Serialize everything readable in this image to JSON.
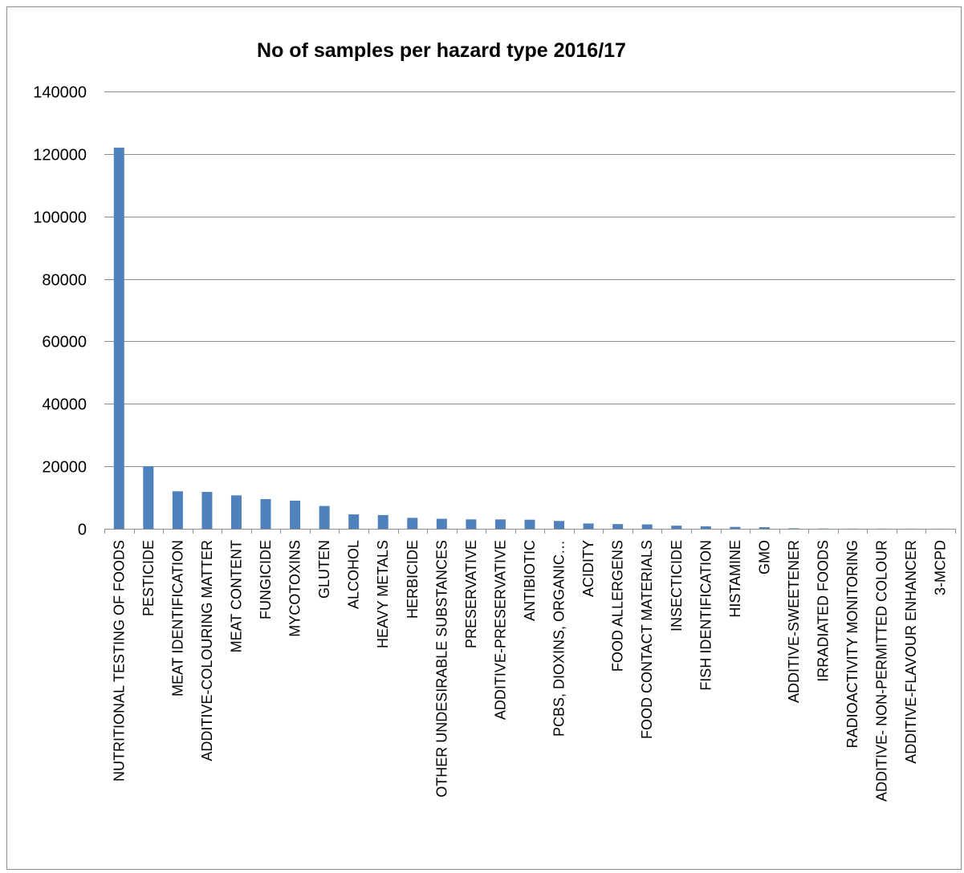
{
  "chart_data": {
    "type": "bar",
    "title": "No of samples per hazard type 2016/17",
    "xlabel": "",
    "ylabel": "",
    "ylim": [
      0,
      140000
    ],
    "yticks": [
      0,
      20000,
      40000,
      60000,
      80000,
      100000,
      120000,
      140000
    ],
    "grid": true,
    "legend": "none",
    "bar_color": "#4f81bd",
    "categories": [
      "NUTRITIONAL TESTING OF FOODS",
      "PESTICIDE",
      "MEAT IDENTIFICATION",
      "ADDITIVE-COLOURING MATTER",
      "MEAT CONTENT",
      "FUNGICIDE",
      "MYCOTOXINS",
      "GLUTEN",
      "ALCOHOL",
      "HEAVY METALS",
      "HERBICIDE",
      "OTHER UNDESIRABLE SUBSTANCES",
      "PRESERVATIVE",
      "ADDITIVE-PRESERVATIVE",
      "ANTIBIOTIC",
      "PCBS, DIOXINS, ORGANIC…",
      "ACIDITY",
      "FOOD ALLERGENS",
      "FOOD CONTACT MATERIALS",
      "INSECTICIDE",
      "FISH IDENTIFICATION",
      "HISTAMINE",
      "GMO",
      "ADDITIVE-SWEETENER",
      "IRRADIATED FOODS",
      "RADIOACTIVITY MONITORING",
      "ADDITIVE- NON-PERMITTED COLOUR",
      "ADDITIVE-FLAVOUR ENHANCER",
      "3-MCPD"
    ],
    "values": [
      122000,
      20000,
      12000,
      11800,
      10700,
      9500,
      9000,
      7300,
      4600,
      4400,
      3500,
      3200,
      3000,
      3000,
      2900,
      2500,
      1700,
      1500,
      1400,
      1000,
      800,
      600,
      500,
      150,
      80,
      50,
      40,
      30,
      20
    ]
  }
}
